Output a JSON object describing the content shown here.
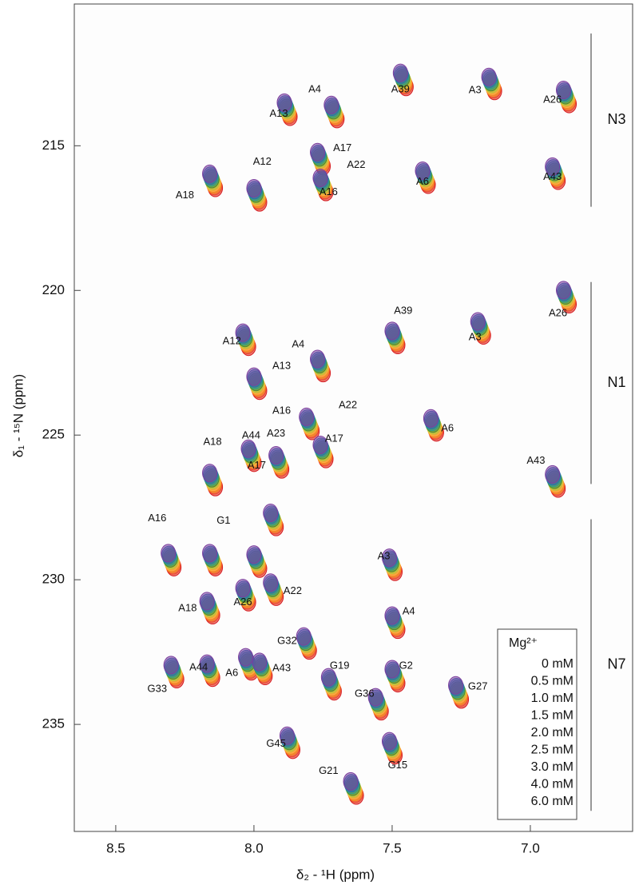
{
  "chart_data": {
    "type": "nmr-spectrum",
    "x_label": "δ₂ - ¹H (ppm)",
    "y_label": "δ₁ - ¹⁵N (ppm)",
    "xlim": [
      8.65,
      6.63
    ],
    "ylim": [
      238.7,
      210.1
    ],
    "xticks": [
      8.5,
      {
        "value": 8.0,
        "label": "8.0"
      },
      7.5,
      {
        "value": 7.0,
        "label": "7.0"
      }
    ],
    "yticks": [
      215,
      220,
      225,
      230,
      235
    ],
    "legend_title": "Mg²⁺",
    "legend_position": "lower right",
    "series": [
      {
        "name": "0 mM",
        "color": "#d7191c"
      },
      {
        "name": "0.5 mM",
        "color": "#ef4b26"
      },
      {
        "name": "1.0 mM",
        "color": "#f7941d"
      },
      {
        "name": "1.5 mM",
        "color": "#fbb73f"
      },
      {
        "name": "2.0 mM",
        "color": "#b5cc3a"
      },
      {
        "name": "2.5 mM",
        "color": "#3f8f3a"
      },
      {
        "name": "3.0 mM",
        "color": "#2a9d8f"
      },
      {
        "name": "4.0 mM",
        "color": "#2b6cb0"
      },
      {
        "name": "6.0 mM",
        "color": "#7b3f9e"
      }
    ],
    "regions": [
      {
        "label": "N3",
        "from": 211.12,
        "to": 217.11
      },
      {
        "label": "N1",
        "from": 219.71,
        "to": 226.69
      },
      {
        "label": "N7",
        "from": 227.91,
        "to": 237.99
      }
    ],
    "peaks": [
      {
        "x": 7.47,
        "y": 212.48
      },
      {
        "x": 7.15,
        "y": 212.62
      },
      {
        "x": 6.88,
        "y": 213.07
      },
      {
        "x": 7.72,
        "y": 213.59
      },
      {
        "x": 7.89,
        "y": 213.51
      },
      {
        "x": 7.77,
        "y": 215.22
      },
      {
        "x": 7.76,
        "y": 216.11
      },
      {
        "x": 8.16,
        "y": 215.97
      },
      {
        "x": 8.0,
        "y": 216.47
      },
      {
        "x": 7.39,
        "y": 215.86
      },
      {
        "x": 6.92,
        "y": 215.72
      },
      {
        "x": 6.88,
        "y": 219.99
      },
      {
        "x": 7.19,
        "y": 221.07
      },
      {
        "x": 7.5,
        "y": 221.4
      },
      {
        "x": 8.04,
        "y": 221.46
      },
      {
        "x": 8.0,
        "y": 222.98
      },
      {
        "x": 7.77,
        "y": 222.37
      },
      {
        "x": 7.81,
        "y": 224.37
      },
      {
        "x": 7.76,
        "y": 225.34
      },
      {
        "x": 8.16,
        "y": 226.31
      },
      {
        "x": 8.02,
        "y": 225.47
      },
      {
        "x": 7.92,
        "y": 225.7
      },
      {
        "x": 7.36,
        "y": 224.42
      },
      {
        "x": 6.92,
        "y": 226.36
      },
      {
        "x": 7.94,
        "y": 227.69
      },
      {
        "x": 8.31,
        "y": 229.08
      },
      {
        "x": 8.16,
        "y": 229.08
      },
      {
        "x": 8.0,
        "y": 229.13
      },
      {
        "x": 8.04,
        "y": 230.29
      },
      {
        "x": 7.94,
        "y": 230.1
      },
      {
        "x": 7.51,
        "y": 229.24
      },
      {
        "x": 7.5,
        "y": 231.24
      },
      {
        "x": 8.17,
        "y": 230.74
      },
      {
        "x": 8.17,
        "y": 232.9
      },
      {
        "x": 8.3,
        "y": 232.95
      },
      {
        "x": 8.03,
        "y": 232.68
      },
      {
        "x": 7.98,
        "y": 232.84
      },
      {
        "x": 7.82,
        "y": 231.96
      },
      {
        "x": 7.73,
        "y": 233.37
      },
      {
        "x": 7.56,
        "y": 234.06
      },
      {
        "x": 7.5,
        "y": 233.09
      },
      {
        "x": 7.27,
        "y": 233.65
      },
      {
        "x": 7.51,
        "y": 235.58
      },
      {
        "x": 7.65,
        "y": 236.97
      },
      {
        "x": 7.88,
        "y": 235.39
      }
    ],
    "annotations": [
      {
        "text": "A39",
        "x": 7.47,
        "y": 213.06
      },
      {
        "text": "A3",
        "x": 7.2,
        "y": 213.09
      },
      {
        "text": "A26",
        "x": 6.92,
        "y": 213.42
      },
      {
        "text": "A4",
        "x": 7.78,
        "y": 213.06
      },
      {
        "text": "A13",
        "x": 7.91,
        "y": 213.9
      },
      {
        "text": "A17",
        "x": 7.68,
        "y": 215.09
      },
      {
        "text": "A22",
        "x": 7.63,
        "y": 215.67
      },
      {
        "text": "A12",
        "x": 7.97,
        "y": 215.56
      },
      {
        "text": "A16",
        "x": 7.73,
        "y": 216.61
      },
      {
        "text": "A18",
        "x": 8.25,
        "y": 216.72
      },
      {
        "text": "A6",
        "x": 7.39,
        "y": 216.25
      },
      {
        "text": "A43",
        "x": 6.92,
        "y": 216.08
      },
      {
        "text": "A39",
        "x": 7.46,
        "y": 220.71
      },
      {
        "text": "A3",
        "x": 7.2,
        "y": 221.62
      },
      {
        "text": "A26",
        "x": 6.9,
        "y": 220.79
      },
      {
        "text": "A12",
        "x": 8.08,
        "y": 221.76
      },
      {
        "text": "A4",
        "x": 7.84,
        "y": 221.87
      },
      {
        "text": "A13",
        "x": 7.9,
        "y": 222.62
      },
      {
        "text": "A22",
        "x": 7.66,
        "y": 223.98
      },
      {
        "text": "A16",
        "x": 7.9,
        "y": 224.17
      },
      {
        "text": "A6",
        "x": 7.3,
        "y": 224.78,
        "color": "#b5301f"
      },
      {
        "text": "A44",
        "x": 8.01,
        "y": 225.03,
        "color": "#b5301f"
      },
      {
        "text": "A23",
        "x": 7.92,
        "y": 224.95,
        "color": "#b5301f"
      },
      {
        "text": "A18",
        "x": 8.15,
        "y": 225.25
      },
      {
        "text": "A17",
        "x": 7.71,
        "y": 225.14
      },
      {
        "text": "A43",
        "x": 6.98,
        "y": 225.89,
        "color": "#b5301f"
      },
      {
        "text": "A17",
        "x": 7.99,
        "y": 226.06
      },
      {
        "text": "A16",
        "x": 8.35,
        "y": 227.88
      },
      {
        "text": "G1",
        "x": 8.11,
        "y": 227.97
      },
      {
        "text": "A3",
        "x": 7.53,
        "y": 229.19
      },
      {
        "text": "A26",
        "x": 8.04,
        "y": 230.79
      },
      {
        "text": "A22",
        "x": 7.86,
        "y": 230.4
      },
      {
        "text": "A18",
        "x": 8.24,
        "y": 230.99
      },
      {
        "text": "A4",
        "x": 7.44,
        "y": 231.1
      },
      {
        "text": "G32",
        "x": 7.88,
        "y": 232.12
      },
      {
        "text": "G19",
        "x": 7.69,
        "y": 232.98
      },
      {
        "text": "G2",
        "x": 7.45,
        "y": 232.98
      },
      {
        "text": "A44",
        "x": 8.2,
        "y": 233.04
      },
      {
        "text": "G33",
        "x": 8.35,
        "y": 233.78
      },
      {
        "text": "A6",
        "x": 8.08,
        "y": 233.23
      },
      {
        "text": "A43",
        "x": 7.9,
        "y": 233.06
      },
      {
        "text": "G27",
        "x": 7.19,
        "y": 233.7
      },
      {
        "text": "G36",
        "x": 7.6,
        "y": 233.95
      },
      {
        "text": "G45",
        "x": 7.92,
        "y": 235.67,
        "color": "#b5301f"
      },
      {
        "text": "G15",
        "x": 7.48,
        "y": 236.42
      },
      {
        "text": "G21",
        "x": 7.73,
        "y": 236.61
      }
    ]
  }
}
